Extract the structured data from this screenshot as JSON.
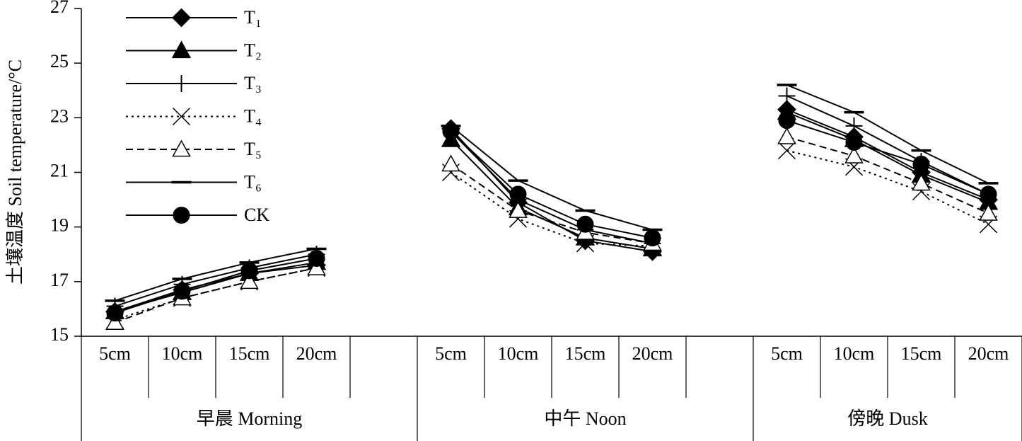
{
  "chart_data": {
    "type": "line",
    "y_label": "土壤温度 Soil temperature/°C",
    "categories": [
      "5cm",
      "10cm",
      "15cm",
      "20cm",
      null,
      "5cm",
      "10cm",
      "15cm",
      "20cm",
      null,
      "5cm",
      "10cm",
      "15cm",
      "20cm"
    ],
    "groups": [
      "早晨 Morning",
      "中午 Noon",
      "傍晚 Dusk"
    ],
    "ylim": [
      15,
      27
    ],
    "yticks": [
      15,
      17,
      19,
      21,
      23,
      25,
      27
    ],
    "legend": "upper-left",
    "series": [
      {
        "name": "T₁",
        "color": "#000000",
        "line_style": "solid",
        "marker": "diamond",
        "values": [
          15.9,
          16.7,
          17.3,
          17.6,
          null,
          22.6,
          19.9,
          18.5,
          18.1,
          null,
          23.3,
          22.3,
          21.0,
          20.0
        ]
      },
      {
        "name": "T₂",
        "color": "#000000",
        "line_style": "solid",
        "marker": "triangle",
        "values": [
          15.9,
          16.6,
          17.3,
          17.7,
          null,
          22.2,
          19.7,
          18.6,
          18.2,
          null,
          23.2,
          22.2,
          20.9,
          19.9
        ]
      },
      {
        "name": "T₃",
        "color": "#000000",
        "line_style": "solid",
        "marker": "plus",
        "values": [
          16.1,
          16.9,
          17.5,
          18.0,
          null,
          22.5,
          20.0,
          18.9,
          18.4,
          null,
          23.8,
          22.7,
          21.4,
          20.2
        ]
      },
      {
        "name": "T₄",
        "color": "#000000",
        "line_style": "dotted",
        "marker": "x",
        "values": [
          15.6,
          16.4,
          17.0,
          17.5,
          null,
          21.0,
          19.3,
          18.4,
          18.3,
          null,
          21.8,
          21.2,
          20.3,
          19.1
        ]
      },
      {
        "name": "T₅",
        "color": "#000000",
        "line_style": "dashed",
        "marker": "open-triangle",
        "values": [
          15.5,
          16.4,
          17.0,
          17.5,
          null,
          21.3,
          19.6,
          18.8,
          18.4,
          null,
          22.3,
          21.6,
          20.6,
          19.5
        ]
      },
      {
        "name": "T₆",
        "color": "#000000",
        "line_style": "solid",
        "marker": "dash",
        "values": [
          16.3,
          17.1,
          17.7,
          18.2,
          null,
          22.7,
          20.7,
          19.6,
          18.9,
          null,
          24.2,
          23.2,
          21.8,
          20.6
        ]
      },
      {
        "name": "CK",
        "color": "#000000",
        "line_style": "solid",
        "marker": "circle",
        "values": [
          15.85,
          16.65,
          17.4,
          17.85,
          null,
          22.5,
          20.2,
          19.1,
          18.6,
          null,
          22.9,
          22.1,
          21.3,
          20.2
        ]
      }
    ]
  }
}
